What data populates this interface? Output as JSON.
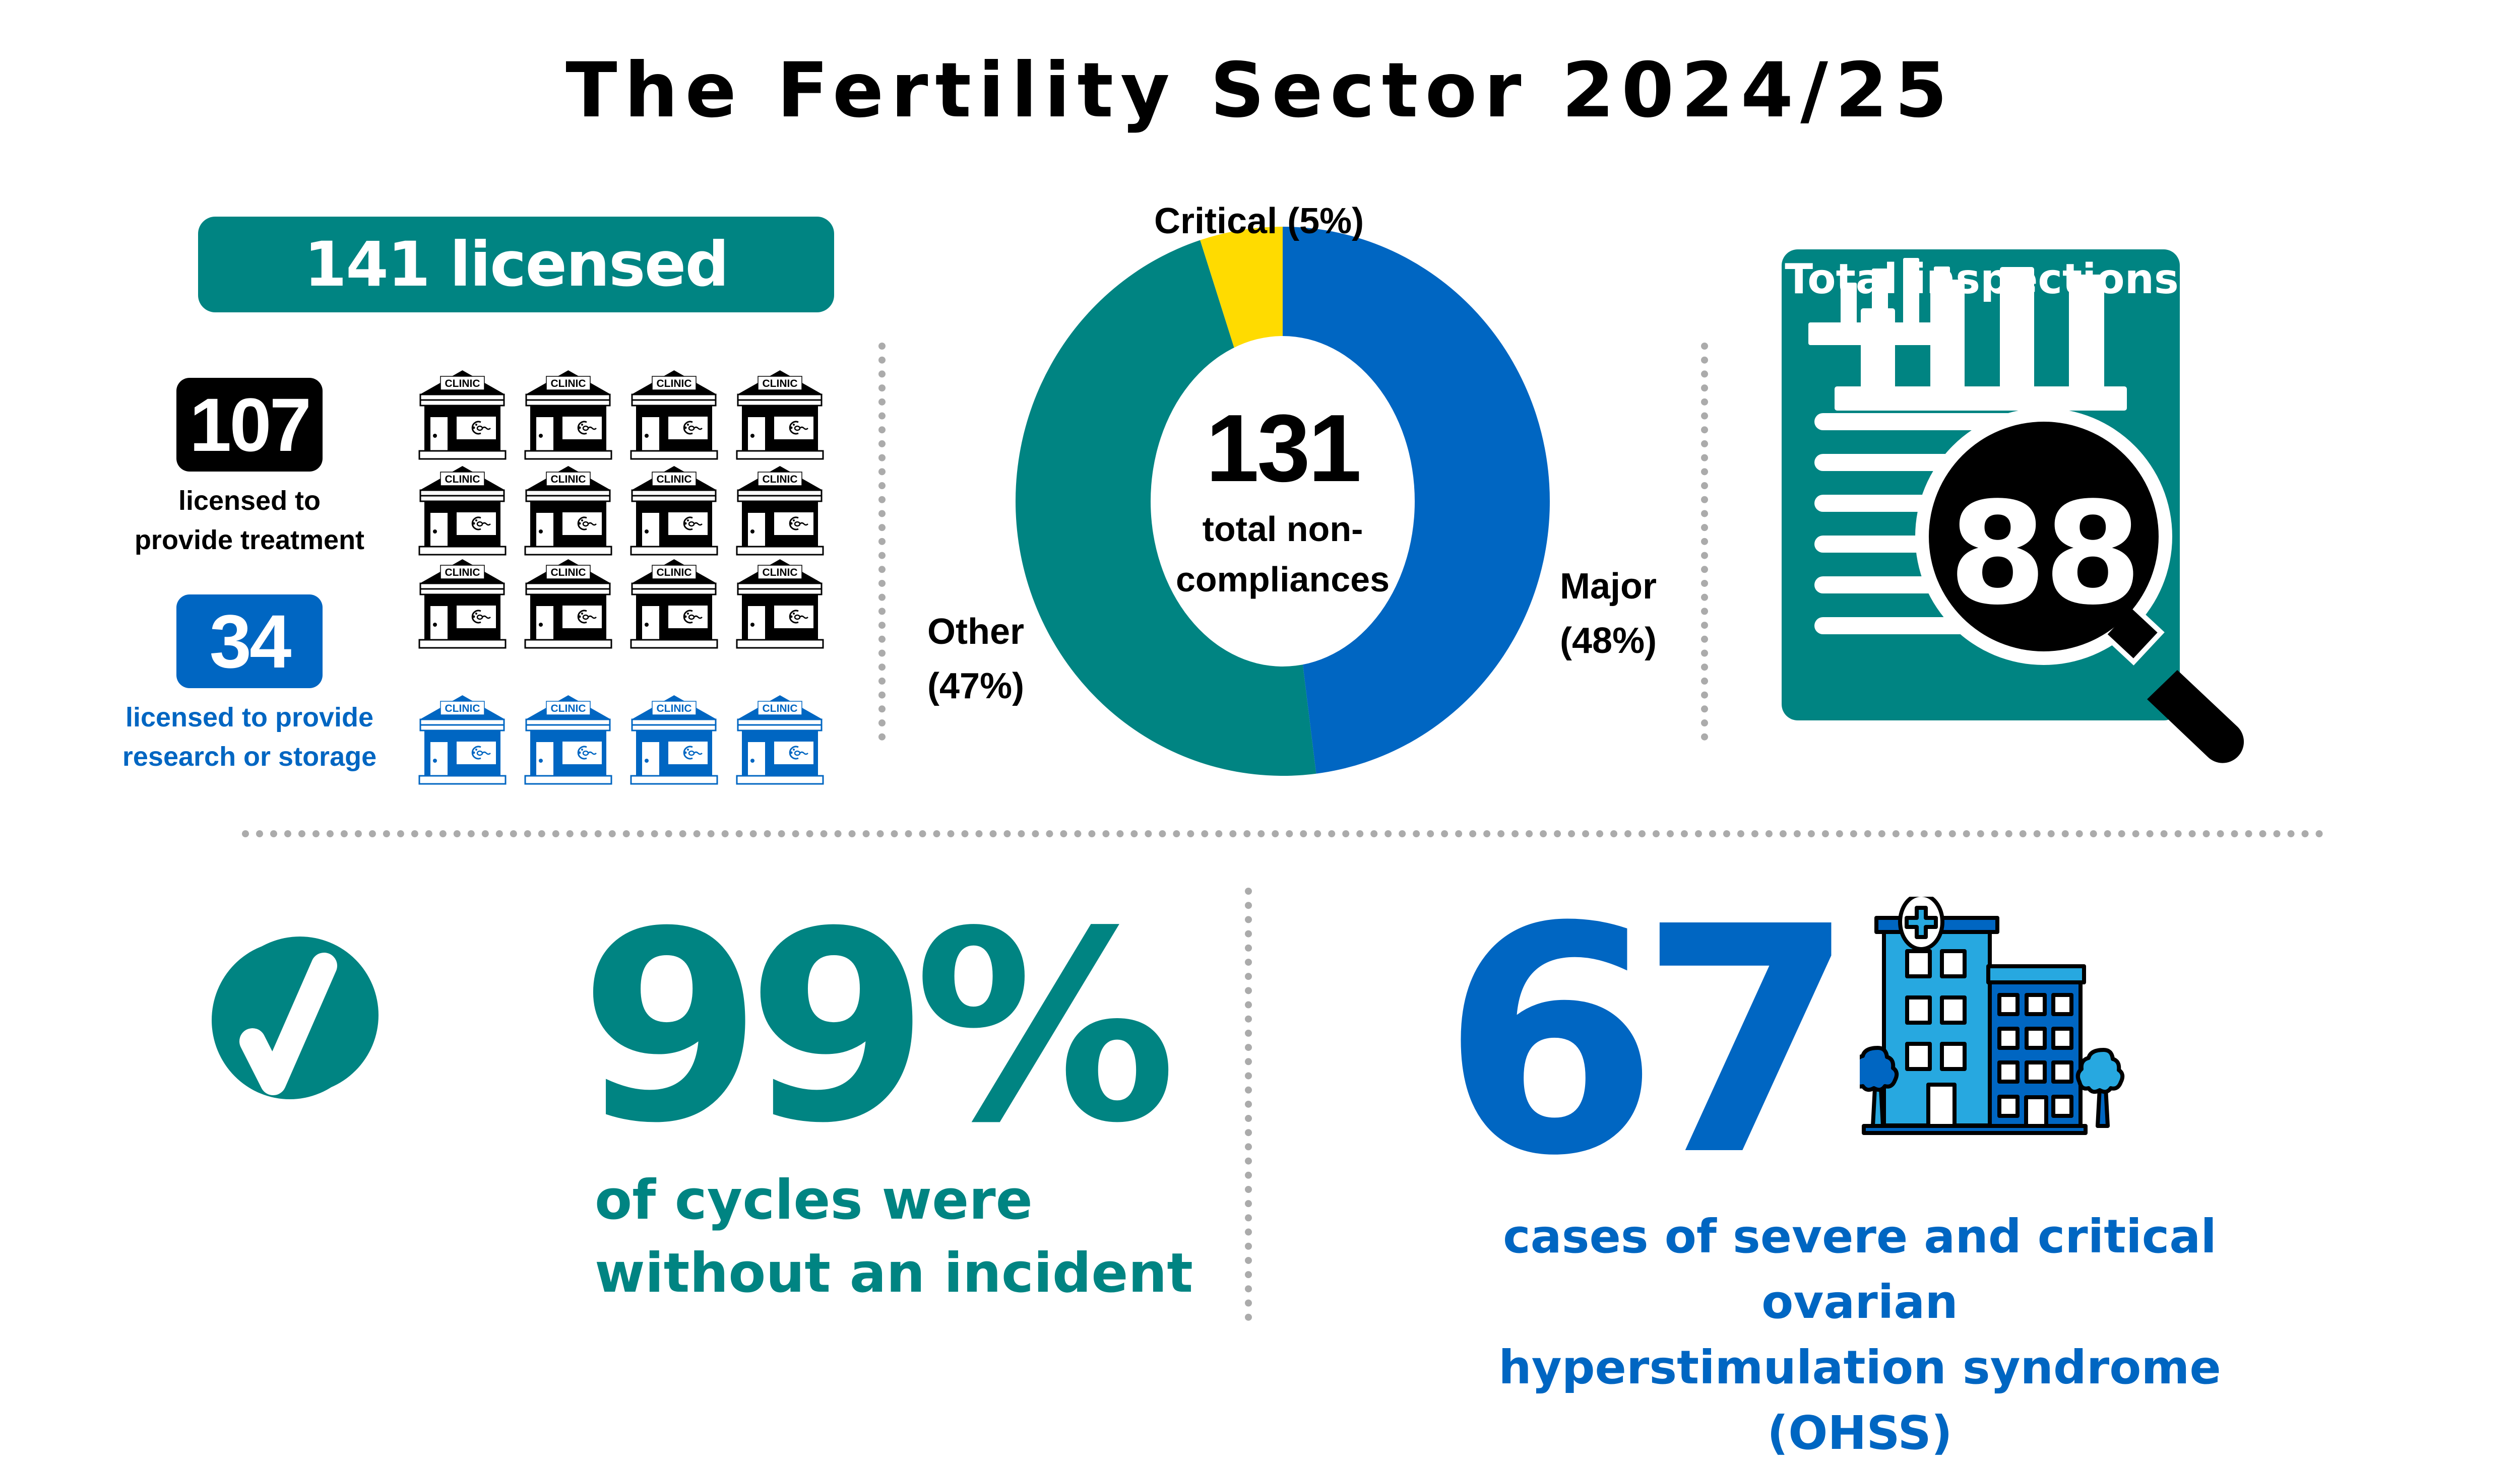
{
  "title": "The Fertility Sector 2024/25",
  "colors": {
    "teal": "#008482",
    "blue": "#0066c2",
    "light_blue": "#27a8e0",
    "yellow": "#ffdb00",
    "black": "#000000",
    "separator_gray": "#ababab"
  },
  "clinics": {
    "badge_label": "141 licensed clinics",
    "total": 141,
    "treatment": {
      "count": "107",
      "label_line1": "licensed to",
      "label_line2": "provide treatment"
    },
    "research_storage": {
      "count": "34",
      "label_line1": "licensed to provide",
      "label_line2": "research or storage"
    },
    "icon_sign_text": "CLINIC",
    "icon_grid": {
      "rows": 4,
      "cols": 4,
      "black_rows": 3,
      "blue_rows": 1
    }
  },
  "non_compliances": {
    "total": "131",
    "total_label_line1": "total non-",
    "total_label_line2": "compliances",
    "labels": {
      "critical": "Critical (5%)",
      "major_line1": "Major",
      "major_line2": "(48%)",
      "other_line1": "Other",
      "other_line2": "(47%)"
    }
  },
  "chart_data": {
    "type": "pie",
    "variant": "donut",
    "title": "131 total non-compliances",
    "categories": [
      "Major",
      "Other",
      "Critical"
    ],
    "values": [
      48,
      47,
      5
    ],
    "unit": "%",
    "colors": [
      "#0066c2",
      "#008482",
      "#ffdb00"
    ],
    "center_label": "131 total non-compliances",
    "labels": [
      "Major (48%)",
      "Other (47%)",
      "Critical (5%)"
    ]
  },
  "inspections": {
    "title": "Total inspections",
    "count": "88"
  },
  "cycles": {
    "percent": "99%",
    "label_line1": "of cycles were",
    "label_line2": "without an incident"
  },
  "ohss": {
    "count": "67",
    "label_line1": "cases of severe and critical ovarian",
    "label_line2": "hyperstimulation syndrome (OHSS)"
  }
}
